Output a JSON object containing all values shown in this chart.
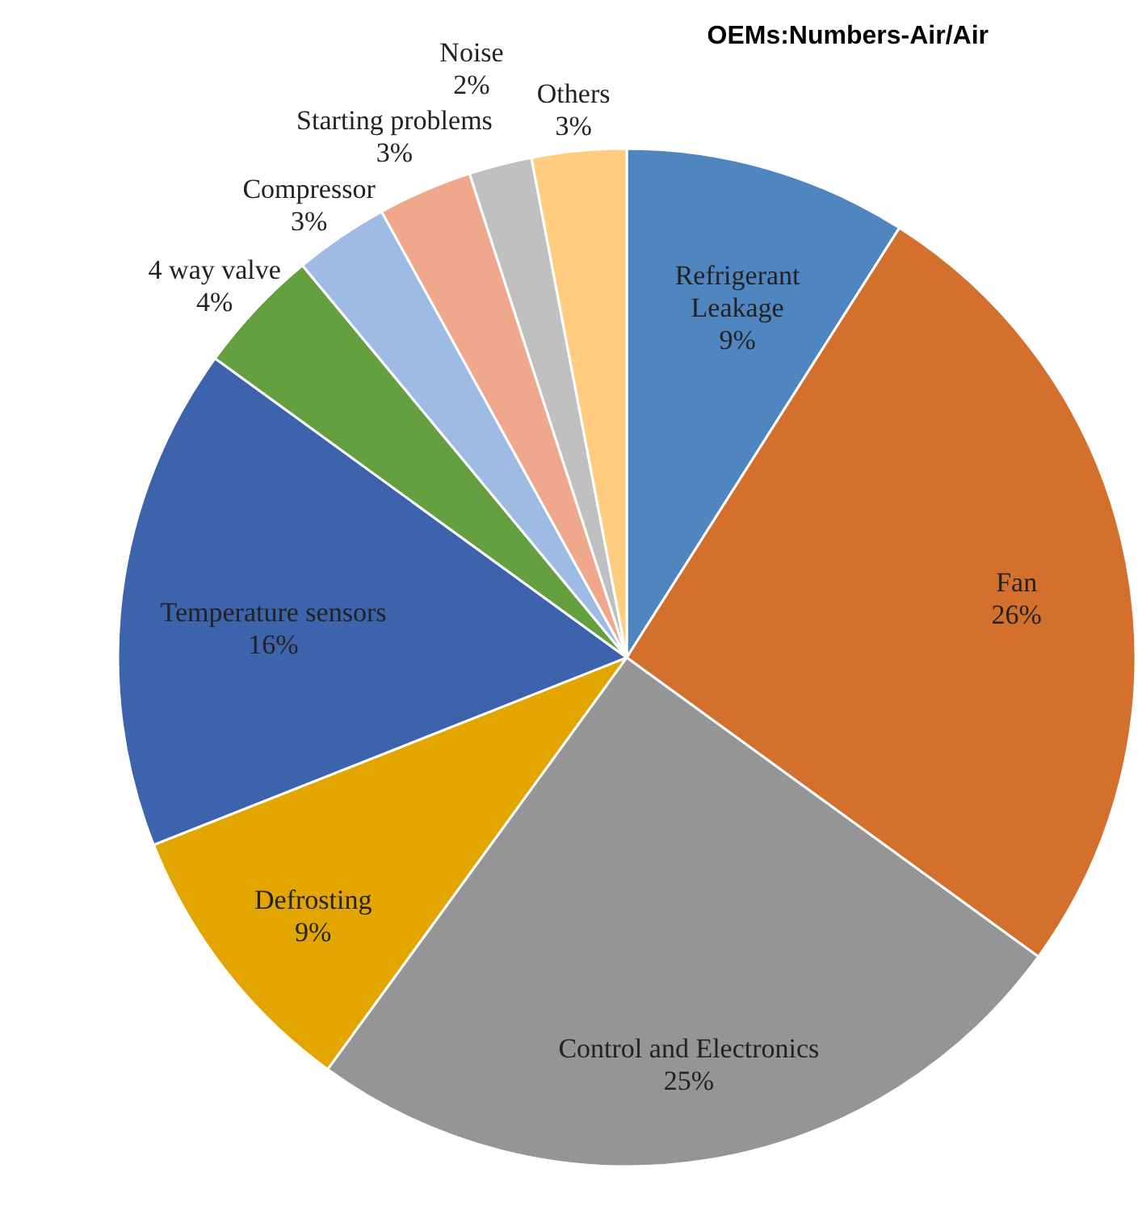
{
  "chart_data": {
    "type": "pie",
    "title": "OEMs:Numbers-Air/Air",
    "categories": [
      "Refrigerant Leakage",
      "Fan",
      "Control and Electronics",
      "Defrosting",
      "Temperature sensors",
      "4 way valve",
      "Compressor",
      "Starting problems",
      "Noise",
      "Others"
    ],
    "values": [
      9,
      26,
      25,
      9,
      16,
      4,
      3,
      3,
      2,
      3
    ],
    "value_labels": [
      "9%",
      "26%",
      "25%",
      "9%",
      "16%",
      "4%",
      "3%",
      "3%",
      "2%",
      "3%"
    ],
    "colors": [
      "#4f86c0",
      "#d3702d",
      "#959595",
      "#e3a600",
      "#3d63ad",
      "#64a03f",
      "#9dbbe3",
      "#f0a88c",
      "#c0c0c0",
      "#ffcc80"
    ],
    "legend": false
  }
}
